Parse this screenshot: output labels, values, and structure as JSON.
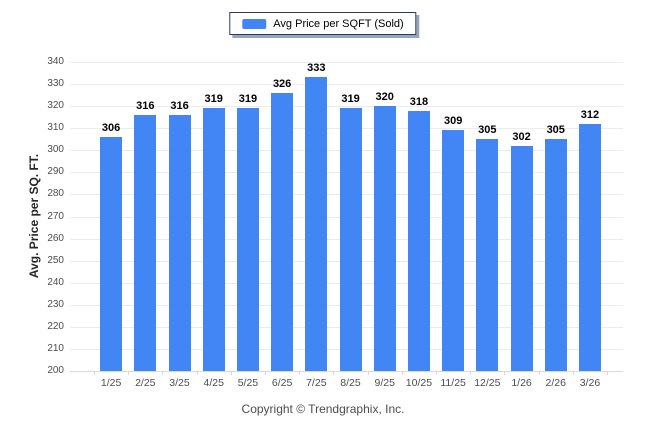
{
  "legend": {
    "label": "Avg Price per SQFT (Sold)"
  },
  "chart_data": {
    "type": "bar",
    "title": "",
    "series_name": "Avg Price per SQFT (Sold)",
    "categories": [
      "1/25",
      "2/25",
      "3/25",
      "4/25",
      "5/25",
      "6/25",
      "7/25",
      "8/25",
      "9/25",
      "10/25",
      "11/25",
      "12/25",
      "1/26",
      "2/26",
      "3/26"
    ],
    "values": [
      306,
      316,
      316,
      319,
      319,
      326,
      333,
      319,
      320,
      318,
      309,
      305,
      302,
      305,
      312
    ],
    "xlabel": "",
    "ylabel": "Avg. Price per SQ. FT.",
    "ylim": [
      200,
      340
    ],
    "ytick_step": 10,
    "grid": true,
    "legend_position": "top-center",
    "value_labels_shown": true,
    "bar_color": "#4285f4"
  },
  "footer": {
    "copyright": "Copyright © Trendgraphix, Inc."
  },
  "colors": {
    "bar": "#4285f4",
    "gridline": "#ececec",
    "axis_line": "#d9d9d9",
    "tick_text": "#4d4d4d",
    "value_label_text": "#000000",
    "axis_title_text": "#262626",
    "legend_border": "#2a3b5f",
    "legend_shadow": "#98a4bb",
    "background": "#ffffff"
  }
}
